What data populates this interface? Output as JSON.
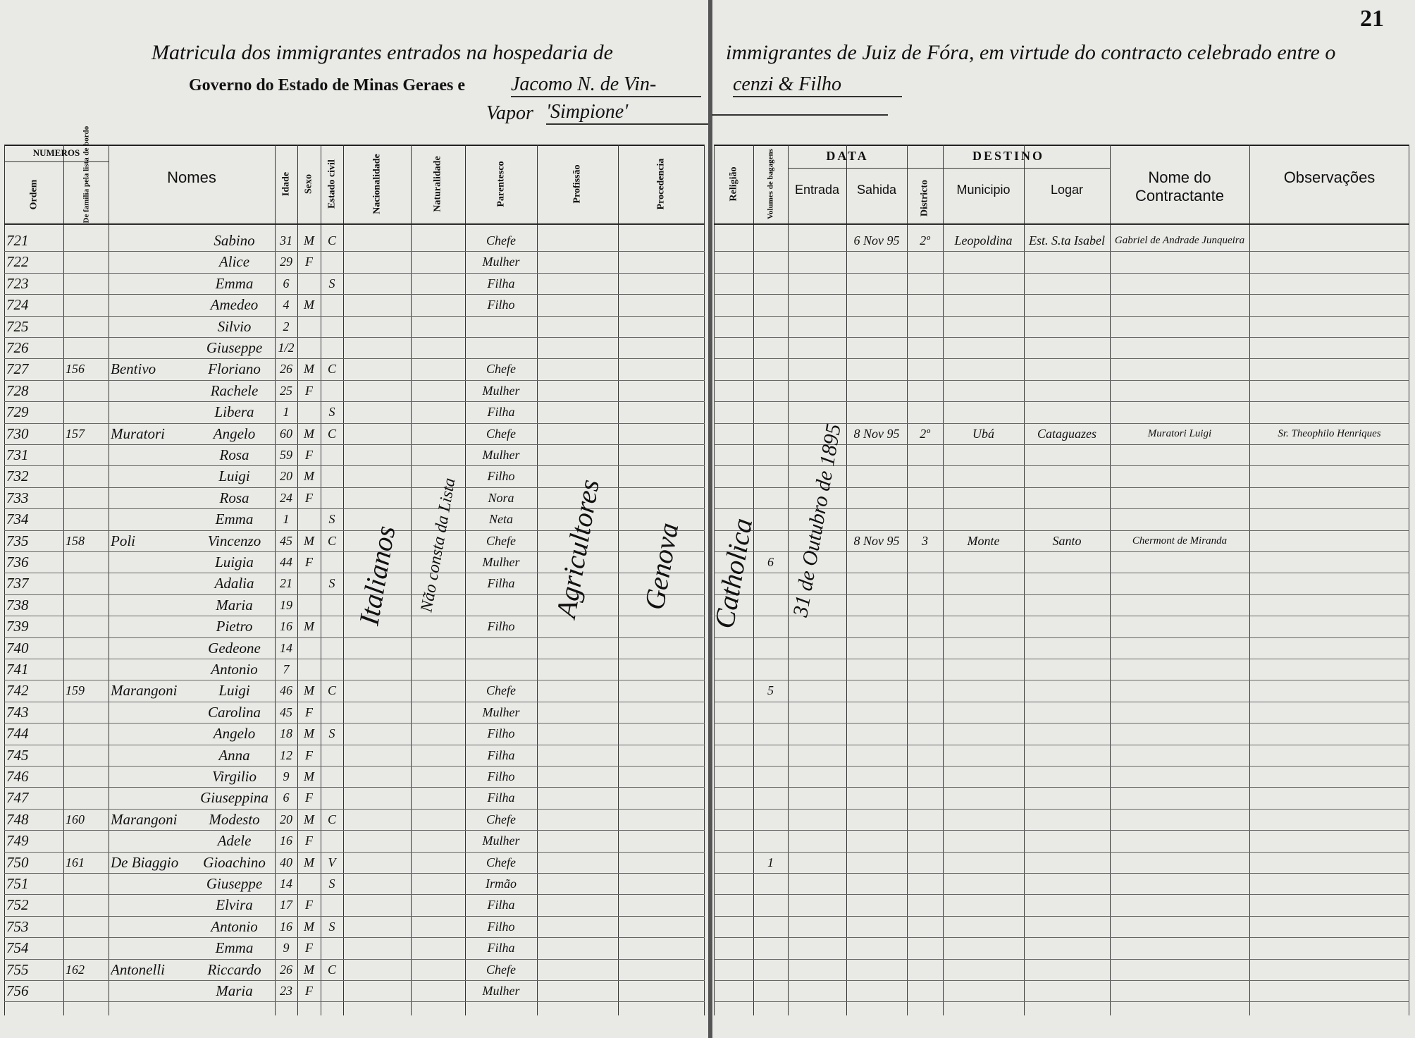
{
  "page_number": "21",
  "header": {
    "line1_left": "Matricula dos immigrantes entrados na hospedaria de",
    "line1_right": "immigrantes de Juiz de Fóra, em virtude do contracto celebrado entre o",
    "line2_left": "Governo do Estado de Minas Geraes e",
    "line2_hand_left": "Jacomo N. de Vin-",
    "line2_hand_right": "cenzi & Filho",
    "line3": "Vapor",
    "ship": "'Simpione'"
  },
  "groups": {
    "numeros": "NUMEROS",
    "data": "DATA",
    "destino": "DESTINO"
  },
  "columns": {
    "ordem": "Ordem",
    "familia": "De familia pela lista de bordo",
    "nomes": "Nomes",
    "idade": "Idade",
    "sexo": "Sexo",
    "estado": "Estado civil",
    "nacionalidade": "Nacionalidade",
    "naturalidade": "Naturalidade",
    "parentesco": "Parentesco",
    "profissao": "Profissão",
    "procedencia": "Procedencia",
    "religiao": "Religião",
    "volumes": "Volumes de bagagens",
    "entrada": "Entrada",
    "sahida": "Sahida",
    "districto": "Districto",
    "municipio": "Municipio",
    "logar": "Logar",
    "contractante": "Nome do Contractante",
    "observacoes": "Observações"
  },
  "vertical_entries": {
    "nacionalidade": "Italianos",
    "naturalidade": "Não consta da Lista",
    "profissao": "Agricultores",
    "procedencia": "Genova",
    "religiao": "Catholica",
    "entrada": "31 de Outubro de 1895"
  },
  "rows": [
    {
      "ordem": "721",
      "nome": "Sabino",
      "idade": "31",
      "sexo": "M",
      "estado": "C",
      "parentesco": "Chefe",
      "sahida": "6 Nov 95",
      "districto": "2º",
      "municipio": "Leopoldina",
      "logar": "Est. S.ta Isabel",
      "contractante": "Gabriel de Andrade Junqueira"
    },
    {
      "ordem": "722",
      "nome": "Alice",
      "idade": "29",
      "sexo": "F",
      "parentesco": "Mulher"
    },
    {
      "ordem": "723",
      "nome": "Emma",
      "idade": "6",
      "estado": "S",
      "parentesco": "Filha"
    },
    {
      "ordem": "724",
      "nome": "Amedeo",
      "idade": "4",
      "sexo": "M",
      "parentesco": "Filho"
    },
    {
      "ordem": "725",
      "nome": "Silvio",
      "idade": "2"
    },
    {
      "ordem": "726",
      "nome": "Giuseppe",
      "idade": "1/2"
    },
    {
      "ordem": "727",
      "familia": "156",
      "sobrenome": "Bentivo",
      "nome": "Floriano",
      "idade": "26",
      "sexo": "M",
      "estado": "C",
      "parentesco": "Chefe"
    },
    {
      "ordem": "728",
      "nome": "Rachele",
      "idade": "25",
      "sexo": "F",
      "parentesco": "Mulher"
    },
    {
      "ordem": "729",
      "nome": "Libera",
      "idade": "1",
      "estado": "S",
      "parentesco": "Filha"
    },
    {
      "ordem": "730",
      "familia": "157",
      "sobrenome": "Muratori",
      "nome": "Angelo",
      "idade": "60",
      "sexo": "M",
      "estado": "C",
      "parentesco": "Chefe",
      "sahida": "8 Nov 95",
      "districto": "2º",
      "municipio": "Ubá",
      "logar": "Cataguazes",
      "contractante": "Muratori Luigi",
      "observacoes": "Sr. Theophilo Henriques"
    },
    {
      "ordem": "731",
      "nome": "Rosa",
      "idade": "59",
      "sexo": "F",
      "parentesco": "Mulher"
    },
    {
      "ordem": "732",
      "nome": "Luigi",
      "idade": "20",
      "sexo": "M",
      "parentesco": "Filho"
    },
    {
      "ordem": "733",
      "nome": "Rosa",
      "idade": "24",
      "sexo": "F",
      "parentesco": "Nora"
    },
    {
      "ordem": "734",
      "nome": "Emma",
      "idade": "1",
      "estado": "S",
      "parentesco": "Neta"
    },
    {
      "ordem": "735",
      "familia": "158",
      "sobrenome": "Poli",
      "nome": "Vincenzo",
      "idade": "45",
      "sexo": "M",
      "estado": "C",
      "parentesco": "Chefe",
      "sahida": "8 Nov 95",
      "districto": "3",
      "municipio": "Monte",
      "logar": "Santo",
      "contractante": "Chermont de Miranda"
    },
    {
      "ordem": "736",
      "nome": "Luigia",
      "idade": "44",
      "sexo": "F",
      "parentesco": "Mulher",
      "volumes": "6"
    },
    {
      "ordem": "737",
      "nome": "Adalia",
      "idade": "21",
      "estado": "S",
      "parentesco": "Filha"
    },
    {
      "ordem": "738",
      "nome": "Maria",
      "idade": "19"
    },
    {
      "ordem": "739",
      "nome": "Pietro",
      "idade": "16",
      "sexo": "M",
      "parentesco": "Filho"
    },
    {
      "ordem": "740",
      "nome": "Gedeone",
      "idade": "14"
    },
    {
      "ordem": "741",
      "nome": "Antonio",
      "idade": "7"
    },
    {
      "ordem": "742",
      "familia": "159",
      "sobrenome": "Marangoni",
      "nome": "Luigi",
      "idade": "46",
      "sexo": "M",
      "estado": "C",
      "parentesco": "Chefe",
      "volumes": "5"
    },
    {
      "ordem": "743",
      "nome": "Carolina",
      "idade": "45",
      "sexo": "F",
      "parentesco": "Mulher"
    },
    {
      "ordem": "744",
      "nome": "Angelo",
      "idade": "18",
      "sexo": "M",
      "estado": "S",
      "parentesco": "Filho"
    },
    {
      "ordem": "745",
      "nome": "Anna",
      "idade": "12",
      "sexo": "F",
      "parentesco": "Filha"
    },
    {
      "ordem": "746",
      "nome": "Virgilio",
      "idade": "9",
      "sexo": "M",
      "parentesco": "Filho"
    },
    {
      "ordem": "747",
      "nome": "Giuseppina",
      "idade": "6",
      "sexo": "F",
      "parentesco": "Filha"
    },
    {
      "ordem": "748",
      "familia": "160",
      "sobrenome": "Marangoni",
      "nome": "Modesto",
      "idade": "20",
      "sexo": "M",
      "estado": "C",
      "parentesco": "Chefe"
    },
    {
      "ordem": "749",
      "nome": "Adele",
      "idade": "16",
      "sexo": "F",
      "parentesco": "Mulher"
    },
    {
      "ordem": "750",
      "familia": "161",
      "sobrenome": "De Biaggio",
      "nome": "Gioachino",
      "idade": "40",
      "sexo": "M",
      "estado": "V",
      "parentesco": "Chefe",
      "volumes": "1"
    },
    {
      "ordem": "751",
      "nome": "Giuseppe",
      "idade": "14",
      "estado": "S",
      "parentesco": "Irmão"
    },
    {
      "ordem": "752",
      "nome": "Elvira",
      "idade": "17",
      "sexo": "F",
      "parentesco": "Filha"
    },
    {
      "ordem": "753",
      "nome": "Antonio",
      "idade": "16",
      "sexo": "M",
      "estado": "S",
      "parentesco": "Filho"
    },
    {
      "ordem": "754",
      "nome": "Emma",
      "idade": "9",
      "sexo": "F",
      "parentesco": "Filha"
    },
    {
      "ordem": "755",
      "familia": "162",
      "sobrenome": "Antonelli",
      "nome": "Riccardo",
      "idade": "26",
      "sexo": "M",
      "estado": "C",
      "parentesco": "Chefe"
    },
    {
      "ordem": "756",
      "nome": "Maria",
      "idade": "23",
      "sexo": "F",
      "parentesco": "Mulher"
    }
  ]
}
